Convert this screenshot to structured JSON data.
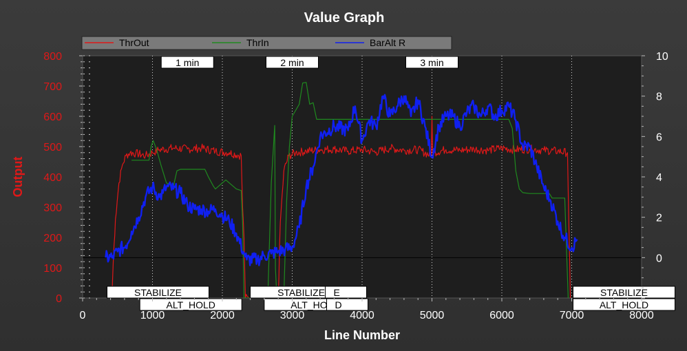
{
  "chart_data": {
    "type": "line",
    "title": "Value Graph",
    "xlabel": "Line Number",
    "ylabel": "Output",
    "y2label": "",
    "xlim": [
      0,
      8000
    ],
    "ylim": [
      0,
      800
    ],
    "y2lim": [
      -2,
      10
    ],
    "x_ticks": [
      0,
      1000,
      2000,
      3000,
      4000,
      5000,
      6000,
      7000,
      8000
    ],
    "y_ticks": [
      0,
      100,
      200,
      300,
      400,
      500,
      600,
      700,
      800
    ],
    "y2_ticks": [
      0,
      2,
      4,
      6,
      8,
      10
    ],
    "legend": [
      "ThrOut",
      "ThrIn",
      "BarAlt R"
    ],
    "legend_position": "top",
    "grid": true,
    "zero_line_y2": 0,
    "series": [
      {
        "name": "ThrOut",
        "axis": "left",
        "color": "#e01818",
        "points": [
          [
            420,
            0
          ],
          [
            440,
            130
          ],
          [
            470,
            260
          ],
          [
            520,
            380
          ],
          [
            570,
            440
          ],
          [
            620,
            470
          ],
          [
            680,
            480
          ],
          [
            760,
            478
          ],
          [
            900,
            470
          ],
          [
            1000,
            480
          ],
          [
            1100,
            490
          ],
          [
            1300,
            495
          ],
          [
            1500,
            492
          ],
          [
            1700,
            495
          ],
          [
            1900,
            485
          ],
          [
            2100,
            480
          ],
          [
            2270,
            470
          ],
          [
            2290,
            300
          ],
          [
            2310,
            200
          ],
          [
            2330,
            0
          ],
          [
            2800,
            0
          ],
          [
            2830,
            250
          ],
          [
            2880,
            420
          ],
          [
            2950,
            470
          ],
          [
            3050,
            480
          ],
          [
            3200,
            485
          ],
          [
            3400,
            490
          ],
          [
            3600,
            492
          ],
          [
            3800,
            485
          ],
          [
            4000,
            490
          ],
          [
            4200,
            482
          ],
          [
            4400,
            495
          ],
          [
            4600,
            488
          ],
          [
            4800,
            490
          ],
          [
            4990,
            470
          ],
          [
            5000,
            600
          ],
          [
            5010,
            480
          ],
          [
            5200,
            490
          ],
          [
            5400,
            488
          ],
          [
            5600,
            492
          ],
          [
            5800,
            488
          ],
          [
            6000,
            495
          ],
          [
            6200,
            490
          ],
          [
            6400,
            492
          ],
          [
            6600,
            488
          ],
          [
            6800,
            485
          ],
          [
            6940,
            480
          ],
          [
            6960,
            240
          ],
          [
            6980,
            0
          ]
        ],
        "noise": 14
      },
      {
        "name": "ThrIn",
        "axis": "left",
        "color": "#1f8a1f",
        "points": [
          [
            700,
            455
          ],
          [
            950,
            455
          ],
          [
            980,
            500
          ],
          [
            1010,
            520
          ],
          [
            1060,
            490
          ],
          [
            1120,
            440
          ],
          [
            1200,
            380
          ],
          [
            1300,
            370
          ],
          [
            1350,
            420
          ],
          [
            1400,
            425
          ],
          [
            1750,
            425
          ],
          [
            1800,
            400
          ],
          [
            1870,
            370
          ],
          [
            1900,
            360
          ],
          [
            2000,
            380
          ],
          [
            2050,
            390
          ],
          [
            2100,
            380
          ],
          [
            2200,
            360
          ],
          [
            2270,
            355
          ],
          [
            2290,
            250
          ],
          [
            2310,
            0
          ],
          [
            2650,
            0
          ],
          [
            2700,
            380
          ],
          [
            2750,
            570
          ],
          [
            2760,
            100
          ],
          [
            2780,
            0
          ],
          [
            2880,
            0
          ],
          [
            2920,
            320
          ],
          [
            2960,
            500
          ],
          [
            3000,
            600
          ],
          [
            3100,
            640
          ],
          [
            3150,
            710
          ],
          [
            3200,
            712
          ],
          [
            3250,
            640
          ],
          [
            3300,
            645
          ],
          [
            3350,
            590
          ],
          [
            3400,
            590
          ],
          [
            6100,
            590
          ],
          [
            6150,
            560
          ],
          [
            6200,
            420
          ],
          [
            6250,
            360
          ],
          [
            6300,
            348
          ],
          [
            6400,
            345
          ],
          [
            6680,
            345
          ],
          [
            6720,
            330
          ],
          [
            6900,
            330
          ],
          [
            6950,
            0
          ]
        ],
        "noise": 0
      },
      {
        "name": "BarAlt R",
        "axis": "right",
        "color": "#1020f0",
        "points": [
          [
            330,
            0
          ],
          [
            420,
            0
          ],
          [
            500,
            0.3
          ],
          [
            620,
            0.6
          ],
          [
            700,
            1.3
          ],
          [
            800,
            2.0
          ],
          [
            900,
            3.0
          ],
          [
            1000,
            3.5
          ],
          [
            1100,
            3.0
          ],
          [
            1150,
            3.2
          ],
          [
            1200,
            3.5
          ],
          [
            1300,
            3.4
          ],
          [
            1400,
            3.2
          ],
          [
            1500,
            2.6
          ],
          [
            1600,
            2.4
          ],
          [
            1700,
            2.4
          ],
          [
            1800,
            2.3
          ],
          [
            1900,
            2.4
          ],
          [
            2000,
            2.1
          ],
          [
            2100,
            1.8
          ],
          [
            2200,
            1.2
          ],
          [
            2300,
            0.3
          ],
          [
            2350,
            -0.1
          ],
          [
            2500,
            -0.1
          ],
          [
            2600,
            0.1
          ],
          [
            2700,
            0.2
          ],
          [
            2800,
            0.3
          ],
          [
            2900,
            0.4
          ],
          [
            3000,
            0.5
          ],
          [
            3100,
            1.5
          ],
          [
            3200,
            3.5
          ],
          [
            3300,
            4.5
          ],
          [
            3400,
            6.0
          ],
          [
            3600,
            6.5
          ],
          [
            3800,
            6.3
          ],
          [
            3900,
            7.5
          ],
          [
            4000,
            5.8
          ],
          [
            4100,
            6.8
          ],
          [
            4200,
            6.5
          ],
          [
            4300,
            8.0
          ],
          [
            4400,
            7.0
          ],
          [
            4500,
            7.5
          ],
          [
            4600,
            8.0
          ],
          [
            4700,
            7.0
          ],
          [
            4800,
            7.8
          ],
          [
            4900,
            6.5
          ],
          [
            5000,
            5.0
          ],
          [
            5100,
            6.5
          ],
          [
            5200,
            7.0
          ],
          [
            5300,
            7.0
          ],
          [
            5400,
            6.5
          ],
          [
            5500,
            7.2
          ],
          [
            5600,
            7.5
          ],
          [
            5700,
            7.0
          ],
          [
            5800,
            7.5
          ],
          [
            5900,
            7.0
          ],
          [
            6000,
            7.3
          ],
          [
            6100,
            7.5
          ],
          [
            6200,
            6.8
          ],
          [
            6300,
            5.5
          ],
          [
            6400,
            5.5
          ],
          [
            6500,
            4.5
          ],
          [
            6600,
            3.5
          ],
          [
            6700,
            2.8
          ],
          [
            6800,
            1.8
          ],
          [
            6900,
            1.0
          ],
          [
            7000,
            0.5
          ],
          [
            7080,
            0.9
          ]
        ],
        "noise": 0.35
      }
    ],
    "time_markers": [
      {
        "x": 1000
      },
      {
        "x": 2000
      },
      {
        "x": 3000
      },
      {
        "x": 4000
      },
      {
        "x": 5000
      },
      {
        "x": 6000
      },
      {
        "x": 7000
      }
    ],
    "time_labels": [
      {
        "label": "1 min",
        "x": 1500
      },
      {
        "label": "2 min",
        "x": 3000
      },
      {
        "label": "3 min",
        "x": 5000
      }
    ],
    "mode_markers": [
      {
        "label": "STABILIZE",
        "x": 330,
        "row": 0
      },
      {
        "label": "ALT_HOLD",
        "x": 800,
        "row": 1
      },
      {
        "label": "STABILIZE",
        "x": 2380,
        "row": 0
      },
      {
        "label": "E",
        "x": 3650,
        "row": 0
      },
      {
        "label": "ALT_HOLD",
        "x": 2580,
        "row": 1
      },
      {
        "label": "D",
        "x": 3670,
        "row": 1
      },
      {
        "label": "STABILIZE",
        "x": 7000,
        "row": 0
      },
      {
        "label": "ALT_HOLD",
        "x": 7000,
        "row": 1
      }
    ]
  }
}
